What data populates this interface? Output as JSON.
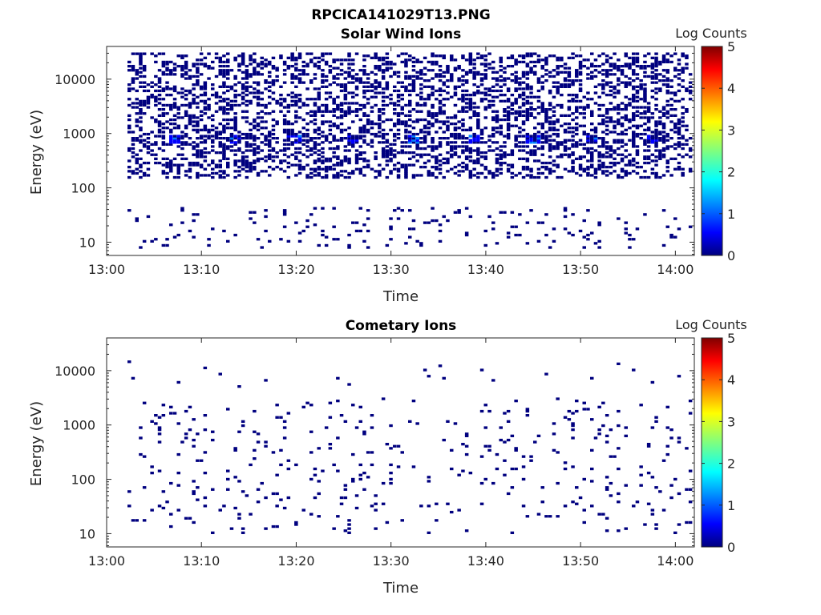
{
  "figure": {
    "title": "RPCICA141029T13.PNG"
  },
  "colors": {
    "background": "#ffffff",
    "axis": "#262626",
    "colormap": [
      "#00007f",
      "#0000ff",
      "#007fff",
      "#00ffff",
      "#7fff7f",
      "#ffff00",
      "#ff7f00",
      "#ff0000",
      "#7f0000"
    ]
  },
  "chart_data": [
    {
      "type": "heatmap",
      "title": "Solar Wind Ions",
      "xlabel": "Time",
      "ylabel": "Energy (eV)",
      "x_range": [
        "13:00",
        "14:02"
      ],
      "x_ticks": [
        "13:00",
        "13:10",
        "13:20",
        "13:30",
        "13:40",
        "13:50",
        "14:00"
      ],
      "y_scale": "log",
      "y_range": [
        5.7,
        40000
      ],
      "y_ticks": [
        10,
        100,
        1000,
        10000
      ],
      "y_tick_labels": [
        "10",
        "100",
        "1000",
        "10000"
      ],
      "colorbar": {
        "label": "Log Counts",
        "range": [
          0,
          5
        ],
        "ticks": [
          "0",
          "1",
          "2",
          "3",
          "4",
          "5"
        ]
      },
      "summary": {
        "dense_band_energy_eV": [
          150,
          30000
        ],
        "peak_band_energy_eV": [
          650,
          900
        ],
        "peak_log_counts": 1.3,
        "sparse_low_energy_columns_eV": [
          10,
          45
        ]
      }
    },
    {
      "type": "heatmap",
      "title": "Cometary Ions",
      "xlabel": "Time",
      "ylabel": "Energy (eV)",
      "x_range": [
        "13:00",
        "14:02"
      ],
      "x_ticks": [
        "13:00",
        "13:10",
        "13:20",
        "13:30",
        "13:40",
        "13:50",
        "14:00"
      ],
      "y_scale": "log",
      "y_range": [
        5.7,
        40000
      ],
      "y_ticks": [
        10,
        100,
        1000,
        10000
      ],
      "y_tick_labels": [
        "10",
        "100",
        "1000",
        "10000"
      ],
      "colorbar": {
        "label": "Log Counts",
        "range": [
          0,
          5
        ],
        "ticks": [
          "0",
          "1",
          "2",
          "3",
          "4",
          "5"
        ]
      },
      "summary": {
        "sparse_energy_eV": [
          10,
          15000
        ],
        "typical_log_counts": 0.1
      }
    }
  ]
}
